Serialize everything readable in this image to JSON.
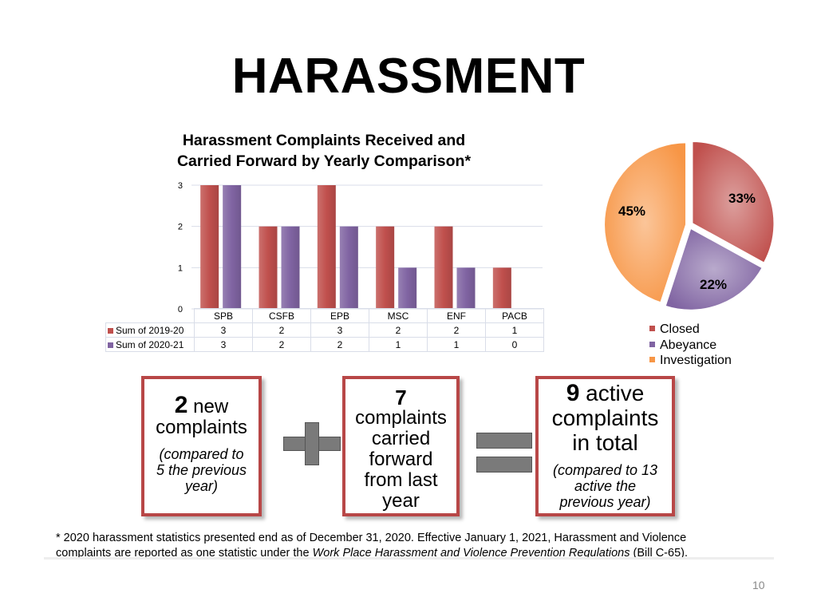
{
  "slide": {
    "title": "HARASSMENT",
    "page_number": "10"
  },
  "chart_data": [
    {
      "type": "bar",
      "title_line1": "Harassment Complaints Received and",
      "title_line2": "Carried Forward by Yearly Comparison*",
      "categories": [
        "SPB",
        "CSFB",
        "EPB",
        "MSC",
        "ENF",
        "PACB"
      ],
      "series": [
        {
          "name": "Sum of 2019-20",
          "values": [
            3,
            2,
            3,
            2,
            2,
            1
          ],
          "color": "#c0504d"
        },
        {
          "name": "Sum of 2020-21",
          "values": [
            3,
            2,
            2,
            1,
            1,
            0
          ],
          "color": "#8064a2"
        }
      ],
      "ylim": [
        0,
        3
      ],
      "yticks": [
        "0",
        "1",
        "2",
        "3"
      ],
      "grid": true,
      "legend": "data-table"
    },
    {
      "type": "pie",
      "labels": [
        "Closed",
        "Abeyance",
        "Investigation"
      ],
      "values": [
        33,
        22,
        45
      ],
      "value_labels": [
        "33%",
        "22%",
        "45%"
      ],
      "colors": [
        "#c0504d",
        "#8064a2",
        "#f79646"
      ],
      "legend": "bottom"
    }
  ],
  "cards": {
    "new": {
      "number": "2",
      "word": "new",
      "line2": "complaints",
      "note": [
        "(compared to",
        "5 the previous",
        "year)"
      ]
    },
    "carried": {
      "number": "7",
      "lines": [
        "complaints",
        "carried",
        "forward",
        "from last",
        "year"
      ]
    },
    "total": {
      "number": "9",
      "word": "active",
      "line2": "complaints",
      "line3": "in total",
      "note": [
        "(compared to 13",
        "active the",
        "previous year)"
      ]
    }
  },
  "footnote": {
    "line1": "* 2020 harassment statistics presented end as of December 31, 2020. Effective January 1, 2021, Harassment and Violence",
    "line2_pre": "complaints are reported as one statistic under the ",
    "line2_italic": "Work Place Harassment and Violence Prevention Regulations",
    "line2_post": " (Bill C-65)."
  }
}
